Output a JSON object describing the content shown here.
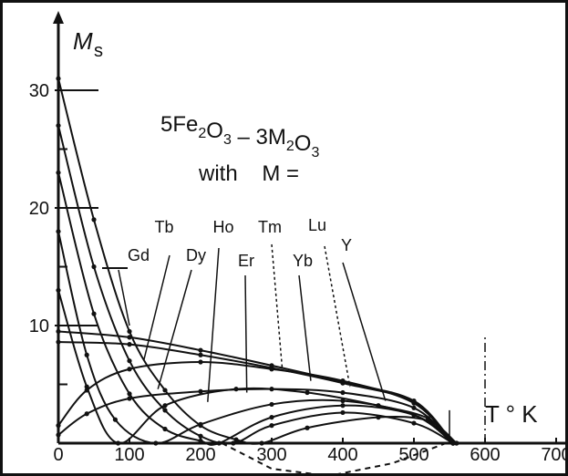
{
  "chart_data": {
    "type": "line",
    "title": "5Fe2O3 – 3M2O3",
    "title_parts": {
      "prefix": "5Fe",
      "sub1": "2",
      "mid1": "O",
      "sub2": "3",
      "mid2": " – 3M",
      "sub3": "2",
      "mid3": "O",
      "sub4": "3"
    },
    "subtitle": "with    M =",
    "ylabel": "M",
    "ylabel_sub": "s",
    "xlabel": "T ° K",
    "xlim": [
      0,
      750
    ],
    "ylim": [
      0,
      33
    ],
    "xticks": [
      0,
      100,
      200,
      300,
      400,
      500,
      600,
      700
    ],
    "yticks": [
      10,
      20,
      30
    ],
    "grid": false,
    "series": [
      {
        "name": "Gd",
        "x": [
          0,
          50,
          100,
          150,
          200,
          250,
          286,
          350,
          450,
          520,
          560
        ],
        "y": [
          31,
          19,
          9.5,
          4.5,
          1.5,
          0.3,
          0,
          1.3,
          2.2,
          1.9,
          0
        ]
      },
      {
        "name": "Tb",
        "x": [
          0,
          50,
          100,
          150,
          200,
          246,
          300,
          400,
          500,
          555
        ],
        "y": [
          27,
          15,
          7,
          2.8,
          0.6,
          0,
          1.5,
          2.6,
          1.7,
          0
        ]
      },
      {
        "name": "Dy",
        "x": [
          0,
          50,
          100,
          150,
          200,
          226,
          300,
          400,
          500,
          560
        ],
        "y": [
          23,
          11,
          4.2,
          1.2,
          0.2,
          0,
          2.2,
          3.2,
          2.4,
          0
        ]
      },
      {
        "name": "Ho",
        "x": [
          0,
          40,
          80,
          137,
          200,
          300,
          400,
          500,
          555
        ],
        "y": [
          18,
          7.5,
          2,
          0,
          1.6,
          3.3,
          3.6,
          2.4,
          0
        ]
      },
      {
        "name": "Er",
        "x": [
          0,
          40,
          84,
          150,
          250,
          350,
          450,
          520,
          555
        ],
        "y": [
          13,
          4.8,
          0,
          3.2,
          4.6,
          4.3,
          3.2,
          2.1,
          0
        ]
      },
      {
        "name": "Tm",
        "x": [
          0,
          40,
          100,
          200,
          300,
          400,
          500,
          555
        ],
        "y": [
          0.7,
          2.5,
          3.8,
          4.4,
          4.6,
          4.3,
          3,
          0
        ]
      },
      {
        "name": "Yb",
        "x": [
          0,
          40,
          100,
          200,
          300,
          400,
          500,
          555
        ],
        "y": [
          1.5,
          4.5,
          6.3,
          6.9,
          6.3,
          5.3,
          3.4,
          0
        ]
      },
      {
        "name": "Lu",
        "x": [
          0,
          100,
          200,
          300,
          400,
          500,
          555
        ],
        "y": [
          8.6,
          8.4,
          7.5,
          6.4,
          5.1,
          3.5,
          0
        ]
      },
      {
        "name": "Y",
        "x": [
          0,
          100,
          200,
          300,
          400,
          500,
          555
        ],
        "y": [
          9.5,
          9,
          7.9,
          6.6,
          5.2,
          3.6,
          0
        ]
      }
    ]
  }
}
